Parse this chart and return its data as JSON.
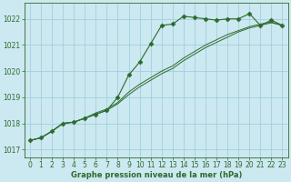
{
  "background_color": "#cce8f0",
  "grid_color": "#99ccdd",
  "line_color": "#2d6a2d",
  "title": "Graphe pression niveau de la mer (hPa)",
  "ylim": [
    1016.7,
    1022.6
  ],
  "xlim": [
    -0.5,
    23.5
  ],
  "yticks": [
    1017,
    1018,
    1019,
    1020,
    1021,
    1022
  ],
  "xticks": [
    0,
    1,
    2,
    3,
    4,
    5,
    6,
    7,
    8,
    9,
    10,
    11,
    12,
    13,
    14,
    15,
    16,
    17,
    18,
    19,
    20,
    21,
    22,
    23
  ],
  "series": [
    {
      "x": [
        0,
        1,
        2,
        3,
        4,
        5,
        6,
        7,
        8,
        9,
        10,
        11,
        12,
        13,
        14,
        15,
        16,
        17,
        18,
        19,
        20,
        21,
        22,
        23
      ],
      "y": [
        1017.35,
        1017.45,
        1017.7,
        1018.0,
        1018.05,
        1018.2,
        1018.35,
        1018.5,
        1019.0,
        1019.85,
        1020.35,
        1021.05,
        1021.75,
        1021.8,
        1022.1,
        1022.05,
        1022.0,
        1021.95,
        1022.0,
        1022.0,
        1022.2,
        1021.75,
        1021.95,
        1021.75
      ],
      "marker": "D",
      "markersize": 2.5,
      "linewidth": 0.8
    },
    {
      "x": [
        0,
        1,
        2,
        3,
        4,
        5,
        6,
        7,
        8,
        9,
        10,
        11,
        12,
        13,
        14,
        15,
        16,
        17,
        18,
        19,
        20,
        21,
        22,
        23
      ],
      "y": [
        1017.35,
        1017.45,
        1017.7,
        1018.0,
        1018.05,
        1018.2,
        1018.35,
        1018.5,
        1018.75,
        1019.1,
        1019.4,
        1019.65,
        1019.9,
        1020.1,
        1020.4,
        1020.65,
        1020.9,
        1021.1,
        1021.3,
        1021.5,
        1021.65,
        1021.75,
        1021.85,
        1021.75
      ],
      "marker": null,
      "linewidth": 0.7
    },
    {
      "x": [
        0,
        1,
        2,
        3,
        4,
        5,
        6,
        7,
        8,
        9,
        10,
        11,
        12,
        13,
        14,
        15,
        16,
        17,
        18,
        19,
        20,
        21,
        22,
        23
      ],
      "y": [
        1017.35,
        1017.45,
        1017.7,
        1018.0,
        1018.05,
        1018.2,
        1018.4,
        1018.55,
        1018.8,
        1019.2,
        1019.5,
        1019.75,
        1020.0,
        1020.2,
        1020.5,
        1020.75,
        1021.0,
        1021.2,
        1021.4,
        1021.55,
        1021.7,
        1021.8,
        1021.88,
        1021.75
      ],
      "marker": null,
      "linewidth": 0.7
    }
  ],
  "tick_fontsize": 5.5,
  "xlabel_fontsize": 6.0
}
